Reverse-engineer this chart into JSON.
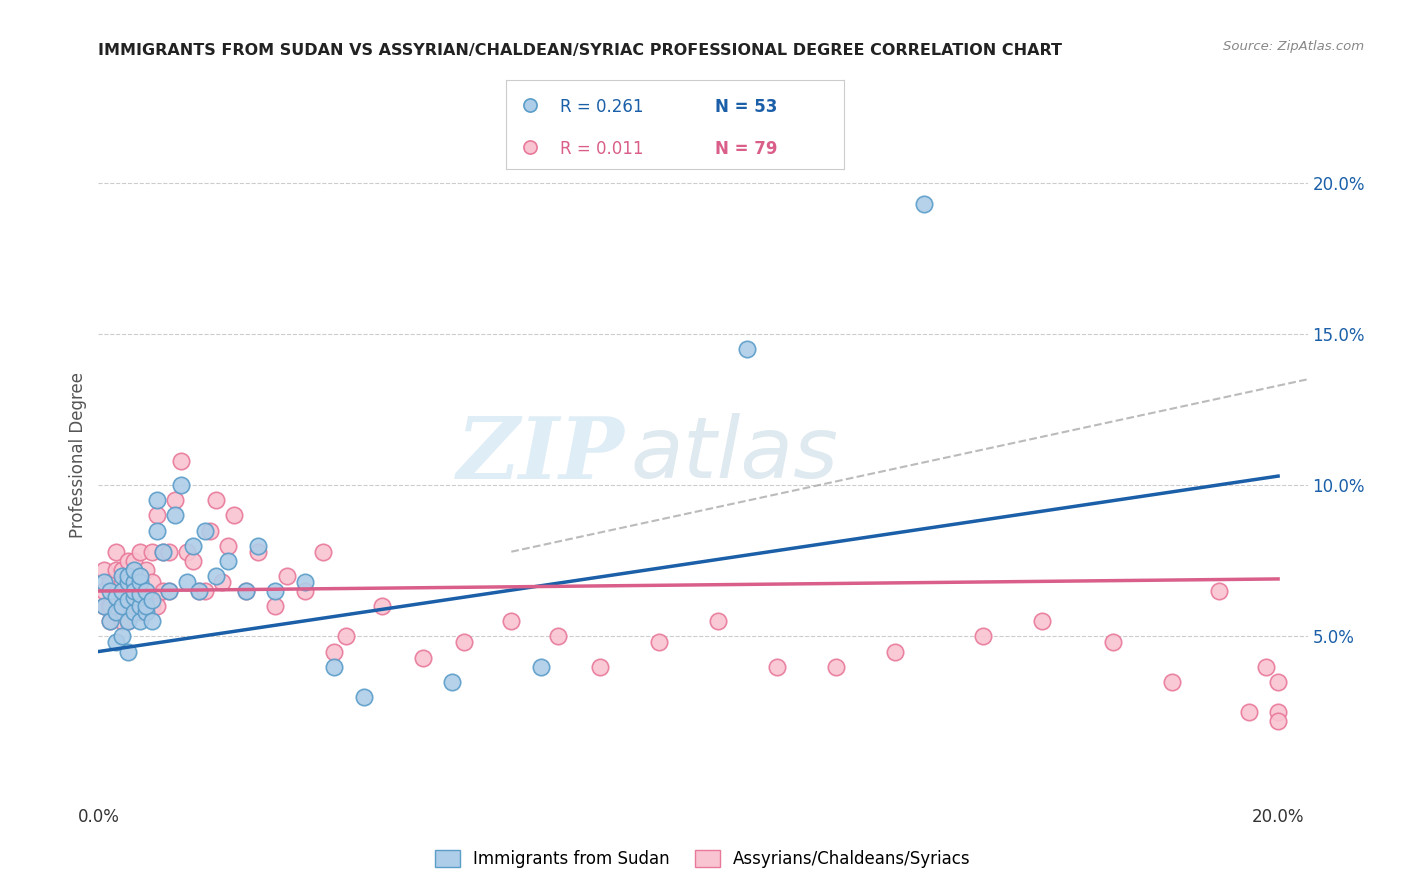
{
  "title": "IMMIGRANTS FROM SUDAN VS ASSYRIAN/CHALDEAN/SYRIAC PROFESSIONAL DEGREE CORRELATION CHART",
  "source": "Source: ZipAtlas.com",
  "ylabel": "Professional Degree",
  "xlim": [
    0.0,
    0.205
  ],
  "ylim": [
    -0.005,
    0.225
  ],
  "ytick_labels": [
    "5.0%",
    "10.0%",
    "15.0%",
    "20.0%"
  ],
  "ytick_values": [
    0.05,
    0.1,
    0.15,
    0.2
  ],
  "xtick_values": [
    0.0,
    0.05,
    0.1,
    0.15,
    0.2
  ],
  "xtick_labels": [
    "0.0%",
    "",
    "",
    "",
    "20.0%"
  ],
  "legend_r1": "R = 0.261",
  "legend_n1": "N = 53",
  "legend_r2": "R = 0.011",
  "legend_n2": "N = 79",
  "color_blue_fill": "#aecde8",
  "color_blue_edge": "#5b9dc9",
  "color_pink_fill": "#f9c4d2",
  "color_pink_edge": "#e8799a",
  "color_blue_line": "#1a5fa8",
  "color_pink_line": "#d95f8a",
  "color_dashed": "#aaaaaa",
  "watermark_zip": "ZIP",
  "watermark_atlas": "atlas",
  "blue_line_x0": 0.0,
  "blue_line_y0": 0.045,
  "blue_line_x1": 0.2,
  "blue_line_y1": 0.103,
  "pink_line_x0": 0.0,
  "pink_line_y0": 0.065,
  "pink_line_x1": 0.2,
  "pink_line_y1": 0.069,
  "dash_line_x0": 0.07,
  "dash_line_y0": 0.078,
  "dash_line_x1": 0.205,
  "dash_line_y1": 0.135,
  "blue_scatter_x": [
    0.001,
    0.001,
    0.002,
    0.002,
    0.003,
    0.003,
    0.003,
    0.004,
    0.004,
    0.004,
    0.004,
    0.005,
    0.005,
    0.005,
    0.005,
    0.005,
    0.006,
    0.006,
    0.006,
    0.006,
    0.006,
    0.007,
    0.007,
    0.007,
    0.007,
    0.007,
    0.008,
    0.008,
    0.008,
    0.009,
    0.009,
    0.01,
    0.01,
    0.011,
    0.012,
    0.013,
    0.014,
    0.015,
    0.016,
    0.017,
    0.018,
    0.02,
    0.022,
    0.025,
    0.027,
    0.03,
    0.035,
    0.04,
    0.045,
    0.06,
    0.075,
    0.11,
    0.14
  ],
  "blue_scatter_y": [
    0.06,
    0.068,
    0.055,
    0.065,
    0.048,
    0.063,
    0.058,
    0.05,
    0.06,
    0.065,
    0.07,
    0.055,
    0.062,
    0.068,
    0.07,
    0.045,
    0.058,
    0.063,
    0.068,
    0.065,
    0.072,
    0.055,
    0.06,
    0.064,
    0.068,
    0.07,
    0.058,
    0.06,
    0.065,
    0.055,
    0.062,
    0.085,
    0.095,
    0.078,
    0.065,
    0.09,
    0.1,
    0.068,
    0.08,
    0.065,
    0.085,
    0.07,
    0.075,
    0.065,
    0.08,
    0.065,
    0.068,
    0.04,
    0.03,
    0.035,
    0.04,
    0.145,
    0.193
  ],
  "pink_scatter_x": [
    0.001,
    0.001,
    0.001,
    0.002,
    0.002,
    0.002,
    0.003,
    0.003,
    0.003,
    0.003,
    0.004,
    0.004,
    0.004,
    0.004,
    0.005,
    0.005,
    0.005,
    0.005,
    0.005,
    0.006,
    0.006,
    0.006,
    0.006,
    0.007,
    0.007,
    0.007,
    0.007,
    0.008,
    0.008,
    0.008,
    0.009,
    0.009,
    0.009,
    0.01,
    0.01,
    0.011,
    0.011,
    0.012,
    0.012,
    0.013,
    0.014,
    0.015,
    0.016,
    0.017,
    0.018,
    0.019,
    0.02,
    0.021,
    0.022,
    0.023,
    0.025,
    0.027,
    0.03,
    0.032,
    0.035,
    0.038,
    0.04,
    0.042,
    0.048,
    0.055,
    0.062,
    0.07,
    0.078,
    0.085,
    0.095,
    0.105,
    0.115,
    0.125,
    0.135,
    0.15,
    0.16,
    0.172,
    0.182,
    0.19,
    0.195,
    0.198,
    0.2,
    0.2,
    0.2
  ],
  "pink_scatter_y": [
    0.06,
    0.065,
    0.072,
    0.055,
    0.06,
    0.068,
    0.058,
    0.065,
    0.072,
    0.078,
    0.055,
    0.06,
    0.068,
    0.072,
    0.055,
    0.06,
    0.065,
    0.07,
    0.075,
    0.058,
    0.062,
    0.068,
    0.075,
    0.058,
    0.065,
    0.07,
    0.078,
    0.058,
    0.065,
    0.072,
    0.06,
    0.068,
    0.078,
    0.06,
    0.09,
    0.065,
    0.078,
    0.065,
    0.078,
    0.095,
    0.108,
    0.078,
    0.075,
    0.065,
    0.065,
    0.085,
    0.095,
    0.068,
    0.08,
    0.09,
    0.065,
    0.078,
    0.06,
    0.07,
    0.065,
    0.078,
    0.045,
    0.05,
    0.06,
    0.043,
    0.048,
    0.055,
    0.05,
    0.04,
    0.048,
    0.055,
    0.04,
    0.04,
    0.045,
    0.05,
    0.055,
    0.048,
    0.035,
    0.065,
    0.025,
    0.04,
    0.025,
    0.035,
    0.022
  ]
}
